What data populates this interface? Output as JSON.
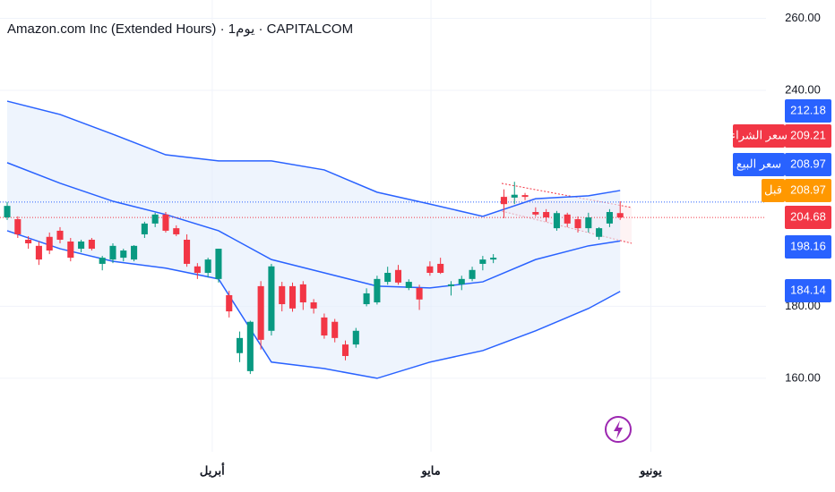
{
  "chart_data": {
    "type": "candlestick",
    "title": "Amazon.com Inc (Extended Hours) · 1يوم · CAPITALCOM",
    "x": [
      0,
      1,
      2,
      3,
      4,
      5,
      6,
      7,
      8,
      9,
      10,
      11,
      12,
      13,
      14,
      15,
      16,
      17,
      18,
      19,
      20,
      21,
      22,
      23,
      24,
      25,
      26,
      27,
      28,
      29,
      30,
      31,
      32,
      33,
      34,
      35,
      36,
      37,
      38,
      39,
      40,
      41,
      42,
      43,
      44,
      45,
      46,
      47,
      48,
      49,
      50,
      51,
      52,
      53,
      54,
      55,
      56,
      57,
      58
    ],
    "open": [
      204.7,
      204.2,
      198.5,
      196.8,
      199.3,
      201.0,
      198.0,
      196.0,
      198.5,
      191.8,
      193.0,
      193.5,
      193.0,
      200.0,
      203.0,
      205.5,
      201.7,
      198.5,
      191.1,
      189.3,
      187.6,
      183.1,
      167.0,
      162.0,
      185.6,
      173.2,
      185.6,
      185.6,
      186.1,
      181.1,
      176.9,
      175.7,
      169.4,
      169.4,
      180.6,
      181.1,
      186.8,
      190.1,
      185.1,
      185.1,
      191.1,
      191.8,
      185.6,
      186.1,
      187.6,
      191.8,
      193.0,
      210.4,
      210.2,
      210.9,
      206.2,
      206.2,
      201.7,
      205.5,
      204.2,
      201.7,
      199.3,
      203.0,
      205.9
    ],
    "high": [
      209.0,
      205.0,
      199.5,
      198.0,
      200.5,
      202.0,
      199.0,
      198.5,
      199.0,
      194.0,
      197.5,
      196.0,
      197.0,
      203.5,
      206.0,
      206.2,
      202.5,
      200.0,
      192.0,
      193.5,
      196.0,
      184.3,
      173.0,
      176.0,
      187.0,
      191.8,
      186.8,
      186.6,
      187.0,
      182.0,
      178.0,
      176.5,
      170.5,
      174.0,
      185.0,
      188.5,
      191.0,
      191.5,
      187.5,
      186.0,
      192.5,
      193.5,
      187.0,
      188.5,
      191.0,
      194.0,
      194.5,
      212.5,
      214.6,
      211.5,
      207.5,
      207.0,
      206.5,
      206.0,
      205.0,
      206.0,
      202.0,
      207.0,
      209.2
    ],
    "low": [
      204.0,
      199.0,
      196.0,
      191.5,
      194.5,
      197.5,
      192.5,
      195.0,
      195.5,
      190.0,
      192.0,
      192.5,
      192.5,
      199.0,
      202.0,
      200.5,
      199.5,
      191.0,
      187.6,
      188.0,
      186.6,
      176.9,
      164.5,
      161.2,
      168.0,
      171.9,
      178.6,
      178.5,
      179.0,
      178.0,
      171.0,
      170.0,
      165.0,
      168.5,
      180.0,
      180.5,
      186.0,
      186.0,
      184.5,
      179.0,
      188.5,
      189.0,
      183.0,
      184.5,
      187.0,
      190.0,
      192.0,
      204.5,
      208.4,
      209.5,
      205.0,
      203.5,
      201.0,
      202.0,
      200.5,
      200.5,
      198.5,
      202.0,
      204.0
    ],
    "close": [
      207.9,
      200.0,
      197.5,
      193.0,
      195.5,
      198.5,
      193.5,
      198.0,
      196.0,
      193.5,
      196.8,
      195.5,
      196.8,
      203.0,
      205.5,
      201.0,
      200.0,
      191.8,
      189.3,
      193.0,
      196.0,
      178.6,
      171.2,
      175.7,
      170.7,
      191.1,
      180.6,
      179.4,
      181.1,
      179.4,
      171.9,
      171.2,
      166.2,
      173.2,
      183.6,
      187.6,
      189.3,
      186.6,
      186.8,
      181.9,
      189.3,
      189.3,
      186.1,
      187.6,
      190.1,
      193.0,
      193.5,
      208.4,
      211.0,
      210.4,
      205.5,
      204.7,
      205.9,
      203.0,
      201.7,
      204.7,
      201.7,
      206.2,
      204.68
    ],
    "up_color": "#089981",
    "down_color": "#f23645",
    "bands": {
      "x": [
        0,
        5,
        10,
        15,
        20,
        25,
        30,
        35,
        40,
        45,
        50,
        55,
        58
      ],
      "upper": [
        237.0,
        233.3,
        227.8,
        222.1,
        220.4,
        220.4,
        217.9,
        211.7,
        208.4,
        205.0,
        209.9,
        210.7,
        212.18
      ],
      "middle": [
        219.9,
        214.2,
        209.2,
        205.5,
        201.0,
        193.0,
        189.3,
        185.6,
        185.1,
        186.8,
        193.0,
        196.8,
        198.16
      ],
      "lower": [
        201.0,
        196.0,
        192.5,
        190.6,
        187.6,
        164.5,
        162.7,
        160.0,
        164.5,
        167.7,
        173.2,
        179.4,
        184.14
      ],
      "color": "#2962ff",
      "fill": "#e3edfc"
    },
    "xlim": [
      -0.68,
      71.8
    ],
    "xticks": [
      {
        "value": 19.4,
        "label": "أبريل"
      },
      {
        "value": 40.1,
        "label": "مايو"
      },
      {
        "value": 60.9,
        "label": "يونيو"
      }
    ],
    "ylim": [
      139.6,
      265.1
    ],
    "yticks": [
      {
        "value": 160,
        "label": "160.00"
      },
      {
        "value": 180,
        "label": "180.00"
      },
      {
        "value": 240,
        "label": "240.00"
      },
      {
        "value": 260,
        "label": "260.00"
      }
    ],
    "grid": true,
    "price_tags": [
      {
        "value": 212.18,
        "color": "#2962ff"
      },
      {
        "name": "سعر الشراء",
        "value": 209.21,
        "color": "#f23645"
      },
      {
        "name": "سعر البيع",
        "value": 208.97,
        "color": "#2962ff"
      },
      {
        "name": "قبل",
        "value": 208.97,
        "color": "#ff9800"
      },
      {
        "value": 204.68,
        "color": "#f23645"
      },
      {
        "value": 198.16,
        "color": "#2962ff"
      },
      {
        "value": 184.14,
        "color": "#2962ff"
      }
    ]
  }
}
